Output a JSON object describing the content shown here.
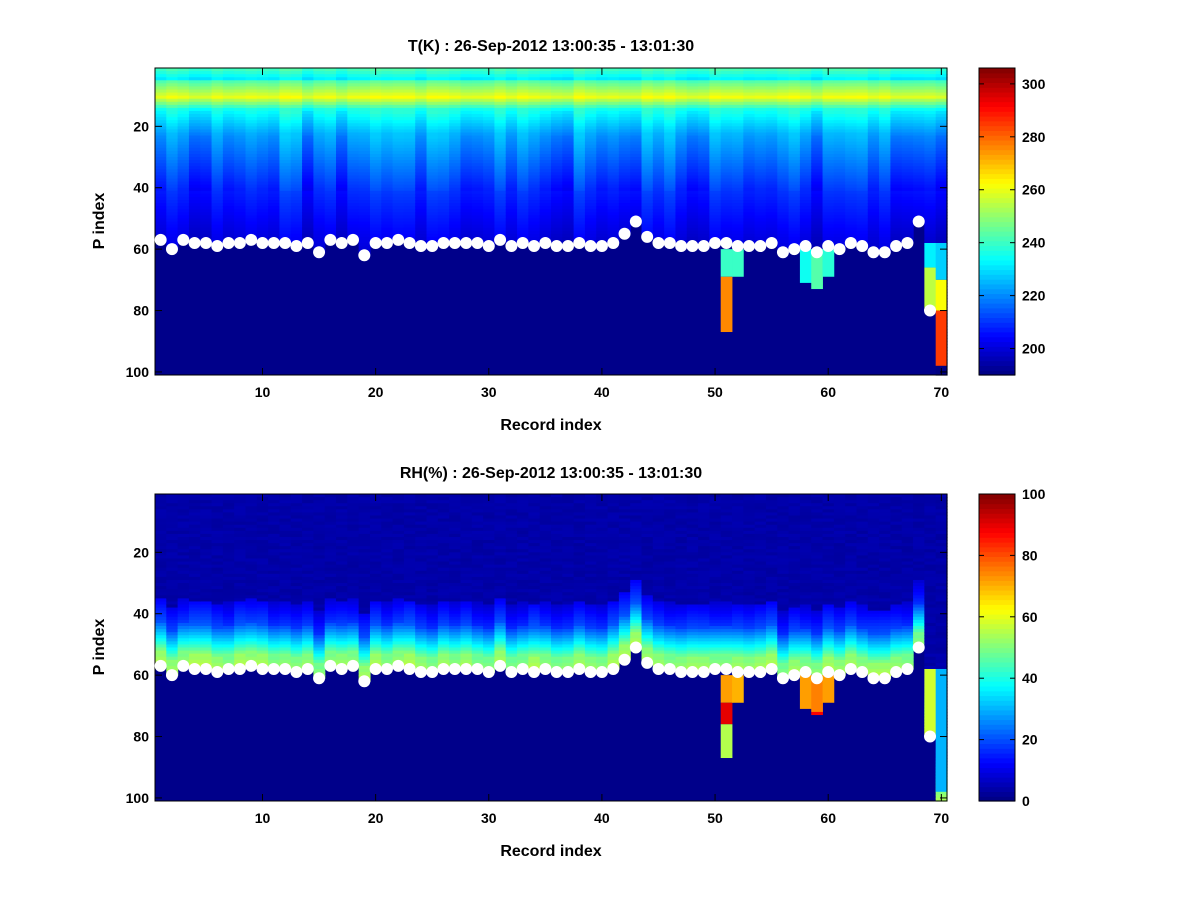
{
  "chart_data": [
    {
      "type": "heatmap",
      "title": "T(K) : 26-Sep-2012 13:00:35 - 13:01:30",
      "xlabel": "Record index",
      "ylabel": "P index",
      "xlim": [
        0.5,
        70.5
      ],
      "ylim": [
        1,
        101
      ],
      "y_reversed": true,
      "xticks": [
        10,
        20,
        30,
        40,
        50,
        60,
        70
      ],
      "yticks": [
        20,
        40,
        60,
        80,
        100
      ],
      "colorbar": {
        "min": 190,
        "max": 306,
        "ticks": [
          200,
          220,
          240,
          260,
          280,
          300
        ]
      },
      "variable": "temperature",
      "surface_marker_p": [
        57,
        60,
        57,
        58,
        58,
        59,
        58,
        58,
        57,
        58,
        58,
        58,
        59,
        58,
        61,
        57,
        58,
        57,
        62,
        58,
        58,
        57,
        58,
        59,
        59,
        58,
        58,
        58,
        58,
        59,
        57,
        59,
        58,
        59,
        58,
        59,
        59,
        58,
        59,
        59,
        58,
        55,
        51,
        56,
        58,
        58,
        59,
        59,
        59,
        58,
        58,
        59,
        59,
        59,
        58,
        61,
        60,
        59,
        61,
        59,
        60,
        58,
        59,
        61,
        61,
        59,
        58,
        51,
        80,
        101
      ],
      "below_surface_features": [
        {
          "record": 51,
          "p_start": 60,
          "p_end": 69,
          "value": 240
        },
        {
          "record": 51,
          "p_start": 69,
          "p_end": 87,
          "value": 276
        },
        {
          "record": 52,
          "p_start": 60,
          "p_end": 69,
          "value": 240
        },
        {
          "record": 58,
          "p_start": 60,
          "p_end": 71,
          "value": 235
        },
        {
          "record": 59,
          "p_start": 60,
          "p_end": 73,
          "value": 243
        },
        {
          "record": 60,
          "p_start": 60,
          "p_end": 69,
          "value": 238
        },
        {
          "record": 69,
          "p_start": 58,
          "p_end": 66,
          "value": 232
        },
        {
          "record": 69,
          "p_start": 66,
          "p_end": 80,
          "value": 255
        },
        {
          "record": 70,
          "p_start": 58,
          "p_end": 70,
          "value": 228
        },
        {
          "record": 70,
          "p_start": 70,
          "p_end": 80,
          "value": 262
        },
        {
          "record": 70,
          "p_start": 80,
          "p_end": 98,
          "value": 285
        }
      ]
    },
    {
      "type": "heatmap",
      "title": "RH(%) : 26-Sep-2012 13:00:35 - 13:01:30",
      "xlabel": "Record index",
      "ylabel": "P index",
      "xlim": [
        0.5,
        70.5
      ],
      "ylim": [
        1,
        101
      ],
      "y_reversed": true,
      "xticks": [
        10,
        20,
        30,
        40,
        50,
        60,
        70
      ],
      "yticks": [
        20,
        40,
        60,
        80,
        100
      ],
      "colorbar": {
        "min": 0,
        "max": 100,
        "ticks": [
          0,
          20,
          40,
          60,
          80,
          100
        ]
      },
      "variable": "humidity",
      "surface_marker_p": [
        57,
        60,
        57,
        58,
        58,
        59,
        58,
        58,
        57,
        58,
        58,
        58,
        59,
        58,
        61,
        57,
        58,
        57,
        62,
        58,
        58,
        57,
        58,
        59,
        59,
        58,
        58,
        58,
        58,
        59,
        57,
        59,
        58,
        59,
        58,
        59,
        59,
        58,
        59,
        59,
        58,
        55,
        51,
        56,
        58,
        58,
        59,
        59,
        59,
        58,
        58,
        59,
        59,
        59,
        58,
        61,
        60,
        59,
        61,
        59,
        60,
        58,
        59,
        61,
        61,
        59,
        58,
        51,
        80,
        101
      ],
      "below_surface_features": [
        {
          "record": 51,
          "p_start": 60,
          "p_end": 69,
          "value": 72
        },
        {
          "record": 51,
          "p_start": 69,
          "p_end": 76,
          "value": 90
        },
        {
          "record": 51,
          "p_start": 76,
          "p_end": 87,
          "value": 55
        },
        {
          "record": 52,
          "p_start": 60,
          "p_end": 69,
          "value": 70
        },
        {
          "record": 58,
          "p_start": 60,
          "p_end": 71,
          "value": 72
        },
        {
          "record": 59,
          "p_start": 60,
          "p_end": 72,
          "value": 75
        },
        {
          "record": 59,
          "p_start": 72,
          "p_end": 73,
          "value": 88
        },
        {
          "record": 60,
          "p_start": 60,
          "p_end": 69,
          "value": 72
        },
        {
          "record": 69,
          "p_start": 58,
          "p_end": 80,
          "value": 58
        },
        {
          "record": 70,
          "p_start": 58,
          "p_end": 98,
          "value": 30
        }
      ]
    }
  ]
}
